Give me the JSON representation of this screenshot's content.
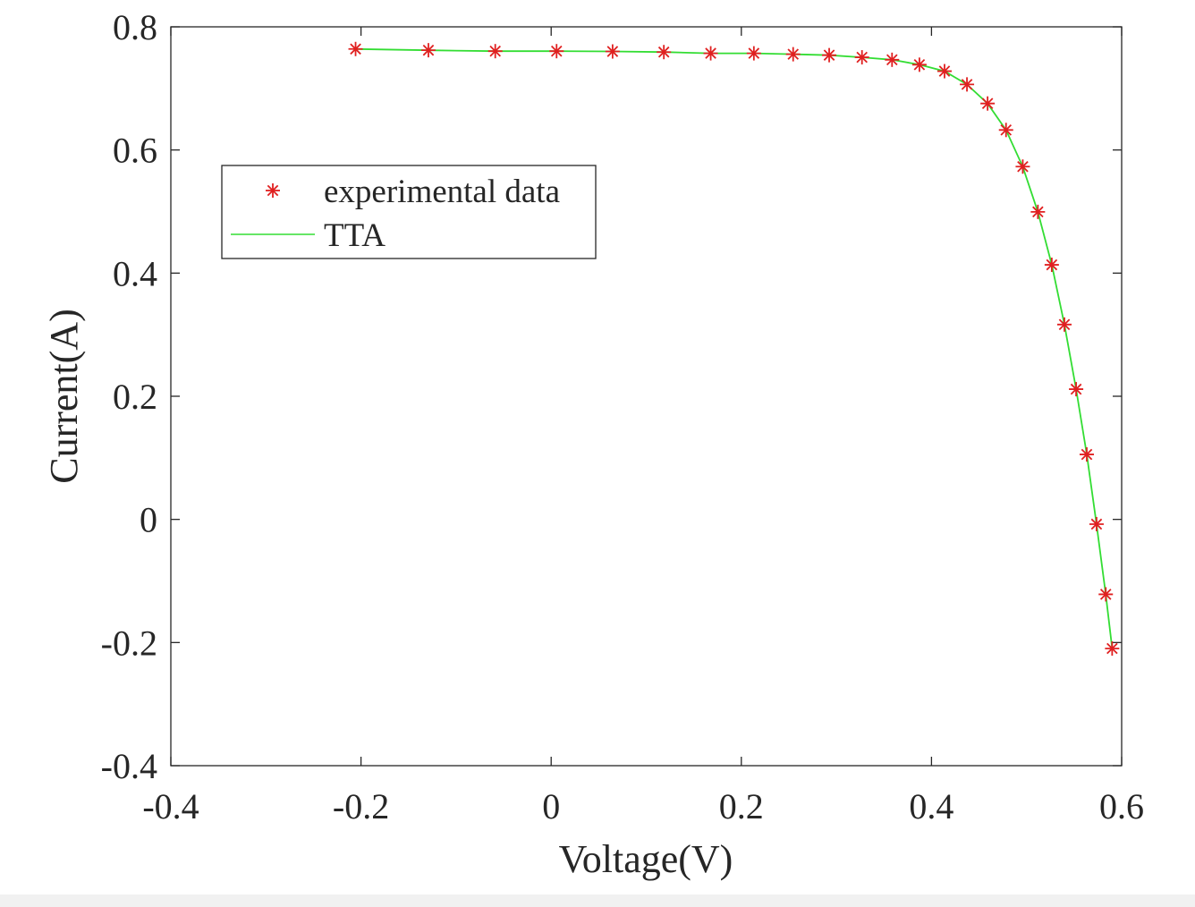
{
  "chart_data": {
    "type": "line",
    "title": "",
    "xlabel": "Voltage(V)",
    "ylabel": "Current(A)",
    "xlim": [
      -0.4,
      0.6
    ],
    "ylim": [
      -0.4,
      0.8
    ],
    "xticks": [
      -0.4,
      -0.2,
      0,
      0.2,
      0.4,
      0.6
    ],
    "yticks": [
      -0.4,
      -0.2,
      0,
      0.2,
      0.4,
      0.6,
      0.8
    ],
    "xtick_labels": [
      "-0.4",
      "-0.2",
      "0",
      "0.2",
      "0.4",
      "0.6"
    ],
    "ytick_labels": [
      "-0.4",
      "-0.2",
      "0",
      "0.2",
      "0.4",
      "0.6",
      "0.8"
    ],
    "grid": false,
    "legend_position": "upper-left",
    "series": [
      {
        "name": "experimental data",
        "kind": "marker",
        "marker": "asterisk",
        "color": "#e02020",
        "x": [
          -0.2057,
          -0.1291,
          -0.0588,
          0.0057,
          0.0646,
          0.1185,
          0.1678,
          0.2132,
          0.2545,
          0.2924,
          0.3269,
          0.3585,
          0.3873,
          0.4137,
          0.4373,
          0.459,
          0.4784,
          0.496,
          0.5119,
          0.5265,
          0.5398,
          0.5521,
          0.5633,
          0.5736,
          0.5833,
          0.59
        ],
        "y": [
          0.764,
          0.762,
          0.7605,
          0.7605,
          0.76,
          0.759,
          0.757,
          0.757,
          0.7555,
          0.754,
          0.7505,
          0.7465,
          0.7385,
          0.728,
          0.7065,
          0.6755,
          0.6325,
          0.573,
          0.4995,
          0.4135,
          0.3165,
          0.2115,
          0.1055,
          -0.0077,
          -0.1217,
          -0.2097
        ]
      },
      {
        "name": "TTA",
        "kind": "line",
        "color": "#33dd33",
        "x": [
          -0.2057,
          -0.1291,
          -0.0588,
          0.0057,
          0.0646,
          0.1185,
          0.1678,
          0.2132,
          0.2545,
          0.2924,
          0.3269,
          0.3585,
          0.3873,
          0.4137,
          0.4373,
          0.459,
          0.4784,
          0.496,
          0.5119,
          0.5265,
          0.5398,
          0.5521,
          0.5633,
          0.5736,
          0.5833,
          0.59
        ],
        "y": [
          0.764,
          0.762,
          0.7605,
          0.7605,
          0.76,
          0.759,
          0.757,
          0.757,
          0.7555,
          0.754,
          0.7505,
          0.7465,
          0.7385,
          0.728,
          0.7065,
          0.6755,
          0.6325,
          0.573,
          0.4995,
          0.4135,
          0.3165,
          0.2115,
          0.1055,
          -0.0077,
          -0.1217,
          -0.2097
        ]
      }
    ]
  }
}
